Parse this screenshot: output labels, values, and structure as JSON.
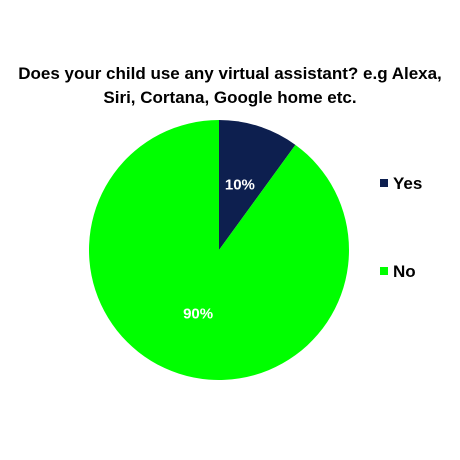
{
  "chart_data": {
    "type": "pie",
    "title_lines": [
      "Does your child use any virtual assistant? e.g Alexa,",
      "Siri, Cortana, Google home etc."
    ],
    "slices": [
      {
        "label": "Yes",
        "value": 10,
        "display": "10%",
        "color": "#0d1f4f"
      },
      {
        "label": "No",
        "value": 90,
        "display": "90%",
        "color": "#00ff00"
      }
    ],
    "start_angle_deg": 0,
    "direction": "clockwise",
    "legend_position": "right"
  }
}
